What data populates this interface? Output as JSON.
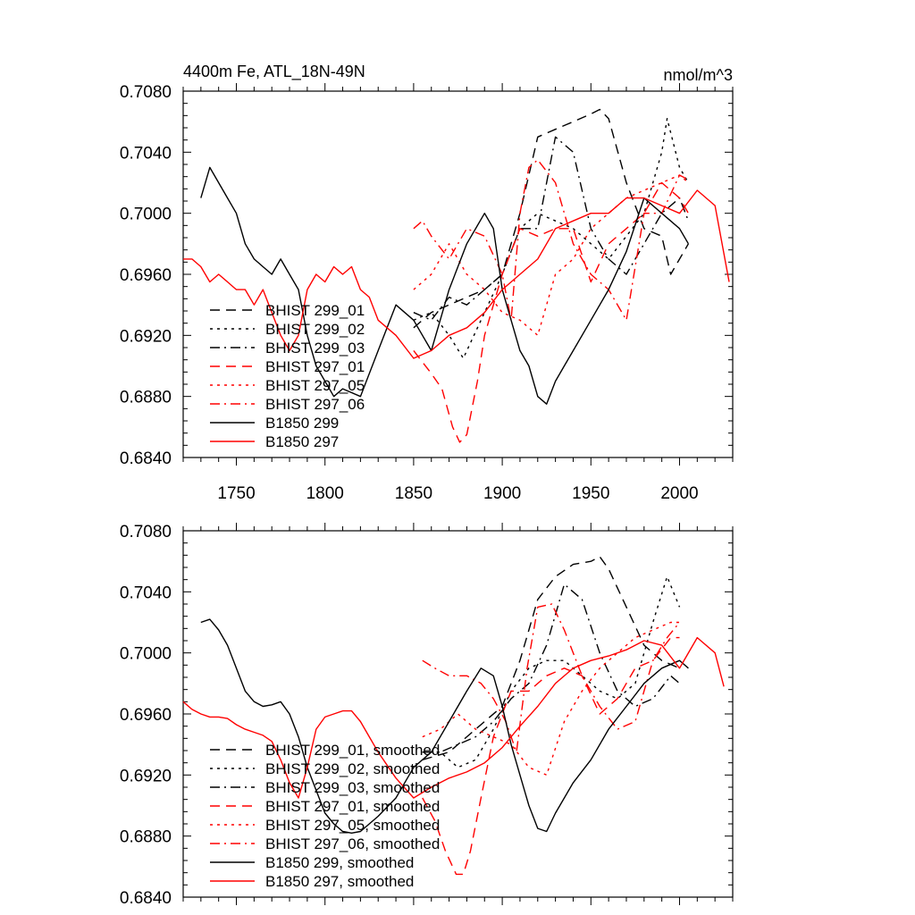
{
  "chart_data": [
    {
      "type": "line",
      "title_left": "4400m Fe, ATL_18N-49N",
      "title_right": "nmol/m^3",
      "xlim": [
        1720,
        2030
      ],
      "ylim": [
        0.684,
        0.708
      ],
      "yticks": [
        0.684,
        0.688,
        0.692,
        0.696,
        0.7,
        0.704,
        0.708
      ],
      "ytick_labels": [
        "0.6840",
        "0.6880",
        "0.6920",
        "0.6960",
        "0.7000",
        "0.7040",
        "0.7080"
      ],
      "xticks": [
        1750,
        1800,
        1850,
        1900,
        1950,
        2000
      ],
      "xtick_labels": [
        "1750",
        "1800",
        "1850",
        "1900",
        "1950",
        "2000"
      ],
      "legend": "lower-left",
      "series": [
        {
          "name": "BHIST 299_01",
          "color": "#000000",
          "dash": "dashed",
          "x": [
            1850,
            1860,
            1870,
            1880,
            1890,
            1900,
            1910,
            1920,
            1930,
            1940,
            1950,
            1955,
            1960,
            1970,
            1980,
            1990,
            1995,
            2000,
            2005
          ],
          "y": [
            0.6925,
            0.6935,
            0.694,
            0.6945,
            0.695,
            0.696,
            0.7,
            0.705,
            0.7055,
            0.706,
            0.7065,
            0.7068,
            0.7062,
            0.702,
            0.699,
            0.6985,
            0.696,
            0.697,
            0.698
          ]
        },
        {
          "name": "BHIST 299_02",
          "color": "#000000",
          "dash": "dotted",
          "x": [
            1850,
            1860,
            1870,
            1878,
            1890,
            1900,
            1910,
            1920,
            1930,
            1940,
            1950,
            1960,
            1970,
            1980,
            1990,
            1993,
            2000,
            2005
          ],
          "y": [
            0.693,
            0.6935,
            0.692,
            0.6905,
            0.6935,
            0.696,
            0.699,
            0.7,
            0.6995,
            0.699,
            0.698,
            0.697,
            0.6985,
            0.7,
            0.704,
            0.7062,
            0.703,
            0.702
          ]
        },
        {
          "name": "BHIST 299_03",
          "color": "#000000",
          "dash": "dashdot",
          "x": [
            1850,
            1860,
            1870,
            1880,
            1890,
            1900,
            1910,
            1920,
            1930,
            1940,
            1950,
            1960,
            1970,
            1980,
            1990,
            2000,
            2005
          ],
          "y": [
            0.6935,
            0.693,
            0.6945,
            0.694,
            0.695,
            0.696,
            0.699,
            0.699,
            0.705,
            0.704,
            0.699,
            0.697,
            0.696,
            0.698,
            0.7,
            0.701,
            0.6995
          ]
        },
        {
          "name": "BHIST 297_01",
          "color": "#ff0000",
          "dash": "dashed",
          "x": [
            1850,
            1860,
            1866,
            1872,
            1876,
            1880,
            1886,
            1890,
            1900,
            1910,
            1920,
            1930,
            1940,
            1950,
            1960,
            1970,
            1980,
            1990,
            2000,
            2005
          ],
          "y": [
            0.691,
            0.6895,
            0.6885,
            0.686,
            0.685,
            0.6855,
            0.689,
            0.692,
            0.696,
            0.699,
            0.6985,
            0.699,
            0.699,
            0.6955,
            0.698,
            0.699,
            0.7,
            0.702,
            0.701,
            0.7
          ]
        },
        {
          "name": "BHIST 297_05",
          "color": "#ff0000",
          "dash": "dotted",
          "x": [
            1850,
            1860,
            1870,
            1880,
            1890,
            1900,
            1910,
            1920,
            1930,
            1940,
            1950,
            1960,
            1970,
            1980,
            1990,
            2000,
            2005
          ],
          "y": [
            0.695,
            0.696,
            0.698,
            0.696,
            0.695,
            0.6935,
            0.693,
            0.692,
            0.696,
            0.697,
            0.699,
            0.7,
            0.701,
            0.7015,
            0.702,
            0.7025,
            0.702
          ]
        },
        {
          "name": "BHIST 297_06",
          "color": "#ff0000",
          "dash": "dashdot",
          "x": [
            1850,
            1855,
            1860,
            1870,
            1880,
            1890,
            1900,
            1905,
            1910,
            1915,
            1920,
            1930,
            1940,
            1950,
            1960,
            1970,
            1980,
            1990,
            2000,
            2005
          ],
          "y": [
            0.699,
            0.6995,
            0.6985,
            0.697,
            0.699,
            0.6985,
            0.696,
            0.693,
            0.7,
            0.703,
            0.7035,
            0.702,
            0.698,
            0.696,
            0.695,
            0.693,
            0.7,
            0.7,
            0.7025,
            0.7022
          ]
        },
        {
          "name": "B1850 299",
          "color": "#000000",
          "dash": "solid",
          "x": [
            1730,
            1735,
            1740,
            1745,
            1750,
            1755,
            1760,
            1765,
            1770,
            1775,
            1780,
            1785,
            1790,
            1795,
            1800,
            1805,
            1810,
            1820,
            1830,
            1840,
            1850,
            1860,
            1870,
            1880,
            1890,
            1895,
            1900,
            1905,
            1910,
            1915,
            1920,
            1925,
            1930,
            1935,
            1940,
            1950,
            1960,
            1970,
            1980,
            1990,
            2000,
            2005
          ],
          "y": [
            0.701,
            0.703,
            0.702,
            0.701,
            0.7,
            0.698,
            0.697,
            0.6965,
            0.696,
            0.697,
            0.696,
            0.695,
            0.692,
            0.69,
            0.689,
            0.688,
            0.6885,
            0.688,
            0.691,
            0.694,
            0.693,
            0.691,
            0.695,
            0.698,
            0.7,
            0.699,
            0.695,
            0.693,
            0.691,
            0.69,
            0.688,
            0.6875,
            0.689,
            0.69,
            0.691,
            0.693,
            0.695,
            0.6975,
            0.701,
            0.7,
            0.699,
            0.698
          ]
        },
        {
          "name": "B1850 297",
          "color": "#ff0000",
          "dash": "solid",
          "x": [
            1720,
            1725,
            1730,
            1735,
            1740,
            1745,
            1750,
            1755,
            1760,
            1765,
            1770,
            1775,
            1780,
            1785,
            1790,
            1795,
            1800,
            1805,
            1810,
            1815,
            1820,
            1825,
            1830,
            1840,
            1850,
            1860,
            1870,
            1880,
            1890,
            1900,
            1910,
            1920,
            1930,
            1940,
            1950,
            1960,
            1970,
            1980,
            1990,
            2000,
            2010,
            2020,
            2028
          ],
          "y": [
            0.697,
            0.697,
            0.6965,
            0.6955,
            0.696,
            0.6955,
            0.695,
            0.695,
            0.694,
            0.695,
            0.6935,
            0.692,
            0.691,
            0.692,
            0.695,
            0.696,
            0.6955,
            0.6965,
            0.696,
            0.6965,
            0.695,
            0.6945,
            0.693,
            0.692,
            0.6905,
            0.691,
            0.692,
            0.6925,
            0.6935,
            0.695,
            0.696,
            0.697,
            0.699,
            0.6995,
            0.7,
            0.7,
            0.701,
            0.701,
            0.7005,
            0.7,
            0.7015,
            0.7005,
            0.6955
          ]
        }
      ]
    },
    {
      "type": "line",
      "xlim": [
        1720,
        2030
      ],
      "ylim": [
        0.684,
        0.708
      ],
      "yticks": [
        0.684,
        0.688,
        0.692,
        0.696,
        0.7,
        0.704,
        0.708
      ],
      "ytick_labels": [
        "0.6840",
        "0.6880",
        "0.6920",
        "0.6960",
        "0.7000",
        "0.7040",
        "0.7080"
      ],
      "xticks": [
        1750,
        1800,
        1850,
        1900,
        1950,
        2000
      ],
      "legend": "lower-left",
      "series": [
        {
          "name": "BHIST 299_01, smoothed",
          "color": "#000000",
          "dash": "dashed",
          "x": [
            1855,
            1870,
            1880,
            1890,
            1900,
            1910,
            1915,
            1920,
            1930,
            1940,
            1950,
            1955,
            1960,
            1970,
            1980,
            1990,
            2000
          ],
          "y": [
            0.693,
            0.6935,
            0.6945,
            0.6955,
            0.6965,
            0.6995,
            0.7015,
            0.7035,
            0.705,
            0.7058,
            0.706,
            0.7063,
            0.7055,
            0.703,
            0.7005,
            0.6995,
            0.699
          ]
        },
        {
          "name": "BHIST 299_02, smoothed",
          "color": "#000000",
          "dash": "dotted",
          "x": [
            1855,
            1865,
            1875,
            1885,
            1895,
            1905,
            1915,
            1925,
            1935,
            1945,
            1955,
            1965,
            1975,
            1985,
            1993,
            2000
          ],
          "y": [
            0.6935,
            0.6935,
            0.6925,
            0.693,
            0.695,
            0.6975,
            0.699,
            0.6995,
            0.6995,
            0.6985,
            0.6975,
            0.697,
            0.698,
            0.702,
            0.705,
            0.703
          ]
        },
        {
          "name": "BHIST 299_03, smoothed",
          "color": "#000000",
          "dash": "dashdot",
          "x": [
            1855,
            1865,
            1875,
            1885,
            1895,
            1905,
            1915,
            1925,
            1935,
            1945,
            1955,
            1965,
            1975,
            1985,
            1995,
            2000
          ],
          "y": [
            0.6935,
            0.6935,
            0.694,
            0.6945,
            0.6955,
            0.697,
            0.698,
            0.7005,
            0.7045,
            0.7035,
            0.7,
            0.6975,
            0.6965,
            0.697,
            0.6985,
            0.698
          ]
        },
        {
          "name": "BHIST 297_01, smoothed",
          "color": "#ff0000",
          "dash": "dashed",
          "x": [
            1855,
            1862,
            1868,
            1874,
            1878,
            1882,
            1888,
            1895,
            1905,
            1915,
            1925,
            1935,
            1945,
            1955,
            1965,
            1975,
            1985,
            1995,
            2000
          ],
          "y": [
            0.6905,
            0.689,
            0.687,
            0.6855,
            0.6855,
            0.687,
            0.6905,
            0.6945,
            0.6975,
            0.6975,
            0.6985,
            0.699,
            0.6985,
            0.696,
            0.697,
            0.699,
            0.6995,
            0.701,
            0.701
          ]
        },
        {
          "name": "BHIST 297_05, smoothed",
          "color": "#ff0000",
          "dash": "dotted",
          "x": [
            1855,
            1865,
            1875,
            1885,
            1895,
            1905,
            1915,
            1925,
            1935,
            1945,
            1955,
            1965,
            1975,
            1985,
            1995,
            2000
          ],
          "y": [
            0.6945,
            0.695,
            0.696,
            0.695,
            0.6945,
            0.694,
            0.6925,
            0.692,
            0.6955,
            0.6975,
            0.699,
            0.7,
            0.701,
            0.7015,
            0.702,
            0.702
          ]
        },
        {
          "name": "BHIST 297_06, smoothed",
          "color": "#ff0000",
          "dash": "dashdot",
          "x": [
            1855,
            1862,
            1870,
            1880,
            1888,
            1895,
            1902,
            1908,
            1914,
            1920,
            1928,
            1935,
            1945,
            1955,
            1965,
            1975,
            1985,
            1993,
            2000
          ],
          "y": [
            0.6995,
            0.699,
            0.6985,
            0.6985,
            0.698,
            0.697,
            0.6955,
            0.6935,
            0.699,
            0.703,
            0.7032,
            0.7015,
            0.6985,
            0.6965,
            0.695,
            0.6955,
            0.6995,
            0.701,
            0.702
          ]
        },
        {
          "name": "B1850 299, smoothed",
          "color": "#000000",
          "dash": "solid",
          "x": [
            1730,
            1735,
            1740,
            1745,
            1750,
            1755,
            1760,
            1765,
            1770,
            1775,
            1780,
            1785,
            1790,
            1795,
            1800,
            1805,
            1810,
            1815,
            1820,
            1830,
            1840,
            1850,
            1860,
            1870,
            1880,
            1888,
            1895,
            1900,
            1905,
            1910,
            1915,
            1920,
            1925,
            1930,
            1940,
            1950,
            1960,
            1970,
            1980,
            1990,
            2000,
            2005
          ],
          "y": [
            0.702,
            0.7022,
            0.7015,
            0.7005,
            0.699,
            0.6975,
            0.6968,
            0.6965,
            0.6966,
            0.6968,
            0.696,
            0.6945,
            0.6925,
            0.691,
            0.6895,
            0.6888,
            0.6883,
            0.6882,
            0.6883,
            0.6893,
            0.6905,
            0.6925,
            0.6935,
            0.6955,
            0.6975,
            0.699,
            0.6985,
            0.6965,
            0.694,
            0.692,
            0.69,
            0.6885,
            0.6883,
            0.6895,
            0.6915,
            0.693,
            0.695,
            0.6965,
            0.698,
            0.699,
            0.6995,
            0.699
          ]
        },
        {
          "name": "B1850 297, smoothed",
          "color": "#ff0000",
          "dash": "solid",
          "x": [
            1720,
            1725,
            1730,
            1735,
            1740,
            1745,
            1750,
            1755,
            1760,
            1765,
            1770,
            1775,
            1780,
            1785,
            1790,
            1795,
            1800,
            1805,
            1810,
            1815,
            1820,
            1825,
            1830,
            1840,
            1850,
            1860,
            1870,
            1880,
            1890,
            1900,
            1910,
            1920,
            1930,
            1940,
            1950,
            1960,
            1970,
            1980,
            1990,
            2000,
            2010,
            2020,
            2025
          ],
          "y": [
            0.6968,
            0.6963,
            0.696,
            0.6958,
            0.6958,
            0.6957,
            0.6953,
            0.695,
            0.6948,
            0.6946,
            0.6942,
            0.693,
            0.6915,
            0.6905,
            0.6925,
            0.695,
            0.6958,
            0.696,
            0.6962,
            0.6962,
            0.6955,
            0.6945,
            0.6935,
            0.6918,
            0.6905,
            0.6912,
            0.6918,
            0.6922,
            0.6928,
            0.6938,
            0.6952,
            0.6965,
            0.698,
            0.699,
            0.6995,
            0.6998,
            0.7002,
            0.7008,
            0.7005,
            0.699,
            0.701,
            0.7,
            0.6978
          ]
        }
      ]
    }
  ]
}
